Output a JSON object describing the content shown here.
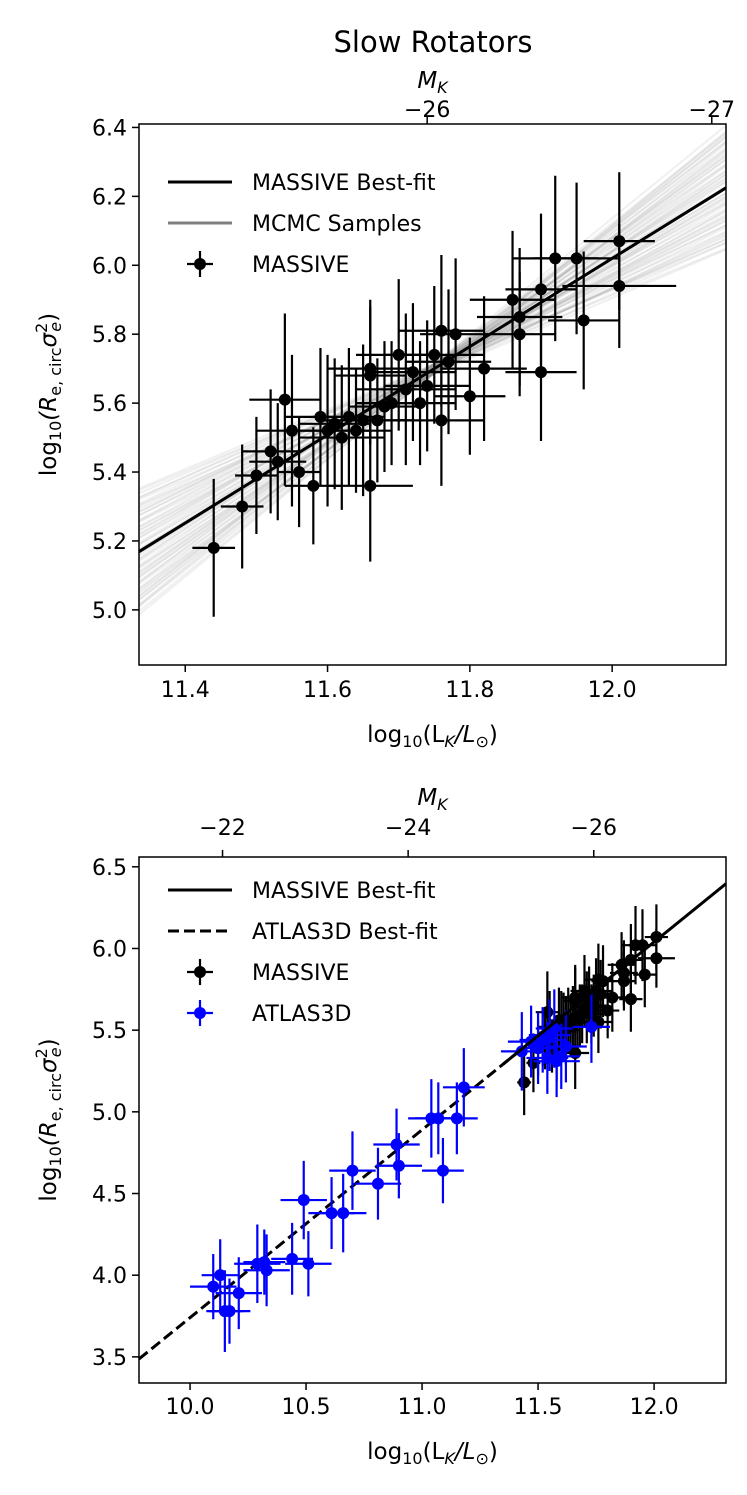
{
  "figure_title": "Slow Rotators",
  "chart_data": [
    {
      "type": "scatter",
      "title": "Slow Rotators",
      "xlabel_pre": "log",
      "xlabel_sub": "10",
      "xlabel_post": "(L",
      "xlabel_sub2": "K",
      "xlabel_post2": "/L",
      "xlabel_sub3": "⊙",
      "xlabel_end": ")",
      "ylabel_pre": "log",
      "ylabel_sub": "10",
      "ylabel_post": "(R",
      "ylabel_sub2": "e, circ",
      "ylabel_post2": "σ",
      "ylabel_sub3": "e",
      "ylabel_sup3": "2",
      "ylabel_end": ")",
      "top_axis_label": "M",
      "top_axis_label_sub": "K",
      "xlim": [
        11.335,
        12.16
      ],
      "ylim": [
        4.84,
        6.41
      ],
      "xticks": [
        11.4,
        11.6,
        11.8,
        12.0
      ],
      "xtick_labels": [
        "11.4",
        "11.6",
        "11.8",
        "12.0"
      ],
      "yticks": [
        5.0,
        5.2,
        5.4,
        5.6,
        5.8,
        6.0,
        6.2,
        6.4
      ],
      "ytick_labels": [
        "5.0",
        "5.2",
        "5.4",
        "5.6",
        "5.8",
        "6.0",
        "6.2",
        "6.4"
      ],
      "top_ticks_mk": [
        -26,
        -27
      ],
      "top_tick_labels": [
        "−26",
        "−27"
      ],
      "mk_to_logL": {
        "logL_at_mk_-26": 11.74,
        "logL_per_mag": 0.4
      },
      "legend": {
        "placement": "top-left",
        "entries": [
          {
            "label": "MASSIVE Best-fit",
            "kind": "solid-line",
            "color": "#000000"
          },
          {
            "label": "MCMC Samples",
            "kind": "line",
            "color": "#808080"
          },
          {
            "label": "MASSIVE",
            "kind": "errorbar-point",
            "color": "#000000"
          }
        ]
      },
      "best_fit": {
        "name": "MASSIVE Best-fit",
        "slope": 1.28,
        "intercept": -9.34,
        "color": "#000000"
      },
      "mcmc_samples": {
        "name": "MCMC Samples",
        "color": "#808080",
        "pivot_x": 11.75,
        "pivot_y": 5.7,
        "slope_range": [
          0.85,
          1.7
        ],
        "count": 60
      },
      "series": [
        {
          "name": "MASSIVE",
          "color": "#000000",
          "points": [
            [
              11.44,
              5.18,
              0.03,
              0.2
            ],
            [
              11.48,
              5.3,
              0.03,
              0.18
            ],
            [
              11.5,
              5.39,
              0.03,
              0.17
            ],
            [
              11.52,
              5.46,
              0.04,
              0.18
            ],
            [
              11.54,
              5.61,
              0.05,
              0.25
            ],
            [
              11.53,
              5.43,
              0.04,
              0.17
            ],
            [
              11.56,
              5.4,
              0.03,
              0.16
            ],
            [
              11.55,
              5.52,
              0.05,
              0.22
            ],
            [
              11.58,
              5.36,
              0.04,
              0.17
            ],
            [
              11.59,
              5.56,
              0.05,
              0.2
            ],
            [
              11.6,
              5.52,
              0.06,
              0.22
            ],
            [
              11.61,
              5.54,
              0.05,
              0.19
            ],
            [
              11.62,
              5.5,
              0.06,
              0.21
            ],
            [
              11.63,
              5.56,
              0.05,
              0.2
            ],
            [
              11.64,
              5.52,
              0.05,
              0.18
            ],
            [
              11.65,
              5.55,
              0.06,
              0.22
            ],
            [
              11.66,
              5.36,
              0.06,
              0.22
            ],
            [
              11.66,
              5.68,
              0.05,
              0.2
            ],
            [
              11.66,
              5.7,
              0.06,
              0.2
            ],
            [
              11.67,
              5.55,
              0.05,
              0.18
            ],
            [
              11.68,
              5.59,
              0.05,
              0.19
            ],
            [
              11.69,
              5.6,
              0.05,
              0.18
            ],
            [
              11.7,
              5.74,
              0.06,
              0.22
            ],
            [
              11.71,
              5.64,
              0.07,
              0.22
            ],
            [
              11.72,
              5.69,
              0.06,
              0.2
            ],
            [
              11.73,
              5.6,
              0.05,
              0.18
            ],
            [
              11.74,
              5.65,
              0.06,
              0.19
            ],
            [
              11.75,
              5.74,
              0.07,
              0.2
            ],
            [
              11.76,
              5.55,
              0.06,
              0.19
            ],
            [
              11.76,
              5.81,
              0.06,
              0.22
            ],
            [
              11.77,
              5.72,
              0.06,
              0.21
            ],
            [
              11.78,
              5.8,
              0.05,
              0.22
            ],
            [
              11.8,
              5.62,
              0.05,
              0.17
            ],
            [
              11.82,
              5.7,
              0.06,
              0.21
            ],
            [
              11.86,
              5.9,
              0.06,
              0.2
            ],
            [
              11.87,
              5.8,
              0.05,
              0.18
            ],
            [
              11.87,
              5.85,
              0.06,
              0.2
            ],
            [
              11.9,
              5.93,
              0.05,
              0.22
            ],
            [
              11.9,
              5.69,
              0.05,
              0.2
            ],
            [
              11.92,
              6.02,
              0.06,
              0.24
            ],
            [
              11.95,
              6.02,
              0.06,
              0.22
            ],
            [
              11.96,
              5.84,
              0.05,
              0.2
            ],
            [
              12.01,
              6.07,
              0.05,
              0.2
            ],
            [
              12.01,
              5.94,
              0.08,
              0.18
            ]
          ]
        }
      ]
    },
    {
      "type": "scatter",
      "title": "",
      "xlabel_pre": "log",
      "xlabel_sub": "10",
      "xlabel_post": "(L",
      "xlabel_sub2": "K",
      "xlabel_post2": "/L",
      "xlabel_sub3": "⊙",
      "xlabel_end": ")",
      "ylabel_pre": "log",
      "ylabel_sub": "10",
      "ylabel_post": "(R",
      "ylabel_sub2": "e, circ",
      "ylabel_post2": "σ",
      "ylabel_sub3": "e",
      "ylabel_sup3": "2",
      "ylabel_end": ")",
      "top_axis_label": "M",
      "top_axis_label_sub": "K",
      "xlim": [
        9.78,
        12.31
      ],
      "ylim": [
        3.34,
        6.56
      ],
      "xticks": [
        10.0,
        10.5,
        11.0,
        11.5,
        12.0
      ],
      "xtick_labels": [
        "10.0",
        "10.5",
        "11.0",
        "11.5",
        "12.0"
      ],
      "yticks": [
        3.5,
        4.0,
        4.5,
        5.0,
        5.5,
        6.0,
        6.5
      ],
      "ytick_labels": [
        "3.5",
        "4.0",
        "4.5",
        "5.0",
        "5.5",
        "6.0",
        "6.5"
      ],
      "top_ticks_mk": [
        -22,
        -24,
        -26
      ],
      "top_tick_labels": [
        "−22",
        "−24",
        "−26"
      ],
      "mk_to_logL": {
        "logL_at_mk_-26": 11.74,
        "logL_per_mag": 0.4
      },
      "legend": {
        "placement": "top-left",
        "entries": [
          {
            "label": "MASSIVE Best-fit",
            "kind": "solid-line",
            "color": "#000000"
          },
          {
            "label": "ATLAS3D Best-fit",
            "kind": "dashed-line",
            "color": "#000000"
          },
          {
            "label": "MASSIVE",
            "kind": "errorbar-point",
            "color": "#000000"
          },
          {
            "label": "ATLAS3D",
            "kind": "errorbar-point",
            "color": "#0000ff"
          }
        ]
      },
      "best_fit": {
        "name": "MASSIVE Best-fit",
        "slope": 1.15,
        "intercept": -7.76,
        "x_from": 11.35,
        "x_to": 12.31,
        "color": "#000000"
      },
      "atlas_fit": {
        "name": "ATLAS3D Best-fit",
        "slope": 1.15,
        "intercept": -7.76,
        "x_from": 9.78,
        "x_to": 11.55,
        "color": "#000000"
      },
      "series": [
        {
          "name": "MASSIVE",
          "color": "#000000",
          "points": [
            [
              11.44,
              5.18,
              0.03,
              0.2
            ],
            [
              11.48,
              5.3,
              0.03,
              0.18
            ],
            [
              11.5,
              5.39,
              0.03,
              0.17
            ],
            [
              11.52,
              5.46,
              0.04,
              0.18
            ],
            [
              11.54,
              5.61,
              0.05,
              0.25
            ],
            [
              11.53,
              5.43,
              0.04,
              0.17
            ],
            [
              11.56,
              5.4,
              0.03,
              0.16
            ],
            [
              11.55,
              5.52,
              0.05,
              0.22
            ],
            [
              11.58,
              5.36,
              0.04,
              0.17
            ],
            [
              11.59,
              5.56,
              0.05,
              0.2
            ],
            [
              11.6,
              5.52,
              0.06,
              0.22
            ],
            [
              11.61,
              5.54,
              0.05,
              0.19
            ],
            [
              11.62,
              5.5,
              0.06,
              0.21
            ],
            [
              11.63,
              5.56,
              0.05,
              0.2
            ],
            [
              11.64,
              5.52,
              0.05,
              0.18
            ],
            [
              11.65,
              5.55,
              0.06,
              0.22
            ],
            [
              11.66,
              5.36,
              0.06,
              0.22
            ],
            [
              11.66,
              5.68,
              0.05,
              0.2
            ],
            [
              11.66,
              5.7,
              0.06,
              0.2
            ],
            [
              11.67,
              5.55,
              0.05,
              0.18
            ],
            [
              11.68,
              5.59,
              0.05,
              0.19
            ],
            [
              11.69,
              5.6,
              0.05,
              0.18
            ],
            [
              11.7,
              5.74,
              0.06,
              0.22
            ],
            [
              11.71,
              5.64,
              0.07,
              0.22
            ],
            [
              11.72,
              5.69,
              0.06,
              0.2
            ],
            [
              11.73,
              5.6,
              0.05,
              0.18
            ],
            [
              11.74,
              5.65,
              0.06,
              0.19
            ],
            [
              11.75,
              5.74,
              0.07,
              0.2
            ],
            [
              11.76,
              5.55,
              0.06,
              0.19
            ],
            [
              11.76,
              5.81,
              0.06,
              0.22
            ],
            [
              11.77,
              5.72,
              0.06,
              0.21
            ],
            [
              11.78,
              5.8,
              0.05,
              0.22
            ],
            [
              11.8,
              5.62,
              0.05,
              0.17
            ],
            [
              11.82,
              5.7,
              0.06,
              0.21
            ],
            [
              11.86,
              5.9,
              0.06,
              0.2
            ],
            [
              11.87,
              5.8,
              0.05,
              0.18
            ],
            [
              11.87,
              5.85,
              0.06,
              0.2
            ],
            [
              11.9,
              5.93,
              0.05,
              0.22
            ],
            [
              11.9,
              5.69,
              0.05,
              0.2
            ],
            [
              11.92,
              6.02,
              0.06,
              0.24
            ],
            [
              11.95,
              6.02,
              0.06,
              0.22
            ],
            [
              11.96,
              5.84,
              0.05,
              0.2
            ],
            [
              12.01,
              6.07,
              0.05,
              0.2
            ],
            [
              12.01,
              5.94,
              0.08,
              0.18
            ]
          ]
        },
        {
          "name": "ATLAS3D",
          "color": "#0000ff",
          "points": [
            [
              10.1,
              3.93,
              0.1,
              0.2
            ],
            [
              10.13,
              4.0,
              0.08,
              0.22
            ],
            [
              10.15,
              3.78,
              0.08,
              0.25
            ],
            [
              10.17,
              3.78,
              0.09,
              0.2
            ],
            [
              10.21,
              3.89,
              0.1,
              0.22
            ],
            [
              10.29,
              4.07,
              0.1,
              0.24
            ],
            [
              10.33,
              4.03,
              0.1,
              0.22
            ],
            [
              10.32,
              4.08,
              0.09,
              0.2
            ],
            [
              10.44,
              4.1,
              0.09,
              0.22
            ],
            [
              10.49,
              4.46,
              0.1,
              0.24
            ],
            [
              10.51,
              4.07,
              0.1,
              0.2
            ],
            [
              10.61,
              4.38,
              0.1,
              0.22
            ],
            [
              10.66,
              4.38,
              0.1,
              0.24
            ],
            [
              10.7,
              4.64,
              0.1,
              0.24
            ],
            [
              10.81,
              4.56,
              0.1,
              0.22
            ],
            [
              10.89,
              4.8,
              0.1,
              0.22
            ],
            [
              10.9,
              4.67,
              0.1,
              0.2
            ],
            [
              11.04,
              4.96,
              0.1,
              0.24
            ],
            [
              11.07,
              4.96,
              0.1,
              0.22
            ],
            [
              11.09,
              4.64,
              0.09,
              0.2
            ],
            [
              11.15,
              4.96,
              0.09,
              0.22
            ],
            [
              11.18,
              5.15,
              0.09,
              0.24
            ],
            [
              11.43,
              5.37,
              0.09,
              0.24
            ],
            [
              11.47,
              5.43,
              0.1,
              0.22
            ],
            [
              11.5,
              5.39,
              0.08,
              0.22
            ],
            [
              11.52,
              5.44,
              0.1,
              0.2
            ],
            [
              11.54,
              5.33,
              0.09,
              0.22
            ],
            [
              11.55,
              5.47,
              0.09,
              0.22
            ],
            [
              11.57,
              5.51,
              0.08,
              0.24
            ],
            [
              11.58,
              5.31,
              0.1,
              0.22
            ],
            [
              11.6,
              5.34,
              0.08,
              0.2
            ],
            [
              11.62,
              5.4,
              0.09,
              0.22
            ],
            [
              11.73,
              5.52,
              0.08,
              0.22
            ]
          ]
        }
      ]
    }
  ]
}
